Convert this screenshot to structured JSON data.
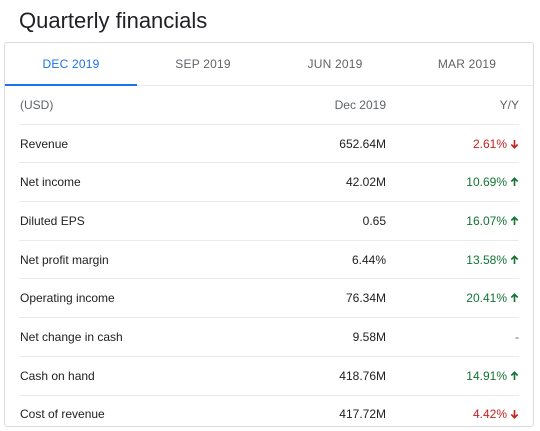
{
  "page": {
    "title": "Quarterly financials"
  },
  "tabs": [
    {
      "label": "DEC 2019",
      "active": true
    },
    {
      "label": "SEP 2019",
      "active": false
    },
    {
      "label": "JUN 2019",
      "active": false
    },
    {
      "label": "MAR 2019",
      "active": false
    }
  ],
  "table": {
    "header": {
      "label": "(USD)",
      "value": "Dec 2019",
      "change": "Y/Y"
    },
    "rows": [
      {
        "label": "Revenue",
        "value": "652.64M",
        "change": "2.61%",
        "direction": "down"
      },
      {
        "label": "Net income",
        "value": "42.02M",
        "change": "10.69%",
        "direction": "up"
      },
      {
        "label": "Diluted EPS",
        "value": "0.65",
        "change": "16.07%",
        "direction": "up"
      },
      {
        "label": "Net profit margin",
        "value": "6.44%",
        "change": "13.58%",
        "direction": "up"
      },
      {
        "label": "Operating income",
        "value": "76.34M",
        "change": "20.41%",
        "direction": "up"
      },
      {
        "label": "Net change in cash",
        "value": "9.58M",
        "change": "-",
        "direction": "none"
      },
      {
        "label": "Cash on hand",
        "value": "418.76M",
        "change": "14.91%",
        "direction": "up"
      },
      {
        "label": "Cost of revenue",
        "value": "417.72M",
        "change": "4.42%",
        "direction": "down"
      }
    ]
  },
  "colors": {
    "accent": "#1a73e8",
    "positive": "#137333",
    "negative": "#c5221f"
  }
}
